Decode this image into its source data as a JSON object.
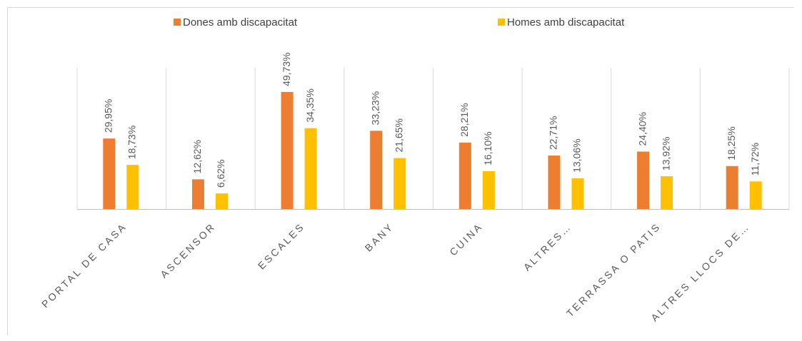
{
  "chart_data": {
    "type": "bar",
    "categories": [
      "PORTAL DE CASA",
      "ASCENSOR",
      "ESCALES",
      "BANY",
      "CUINA",
      "ALTRES…",
      "TERRASSA O PATIS",
      "ALTRES LLOCS DE…"
    ],
    "series": [
      {
        "name": "Dones amb discapacitat",
        "color": "#ED7D31",
        "values": [
          29.95,
          12.62,
          49.73,
          33.23,
          28.21,
          22.71,
          24.4,
          18.25
        ],
        "value_labels": [
          "29,95%",
          "12,62%",
          "49,73%",
          "33,23%",
          "28,21%",
          "22,71%",
          "24,40%",
          "18,25%"
        ]
      },
      {
        "name": "Homes amb discapacitat",
        "color": "#FFC000",
        "values": [
          18.73,
          6.62,
          34.35,
          21.65,
          16.1,
          13.06,
          13.92,
          11.72
        ],
        "value_labels": [
          "18,73%",
          "6,62%",
          "34,35%",
          "21,65%",
          "16,10%",
          "13,06%",
          "13,92%",
          "11,72%"
        ]
      }
    ],
    "ylim": [
      0,
      60
    ]
  }
}
